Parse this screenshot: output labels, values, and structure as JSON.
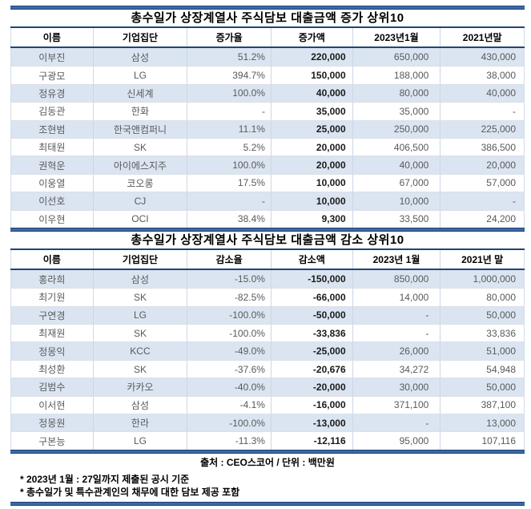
{
  "colors": {
    "rule_navy_core": "#3b69a5",
    "rule_navy_edge": "#1d4273",
    "divider_navy": "#1f4577",
    "row_alt_fill": "#dbe5f1",
    "grid_line": "#ccd7e6",
    "data_text": "#58595b"
  },
  "chart_data": [
    {
      "type": "table",
      "title": "총수일가 상장계열사 주식담보 대출금액 증가 상위10",
      "headers": [
        "이름",
        "기업집단",
        "증가율",
        "증가액",
        "2023년1월",
        "2021년말"
      ],
      "rows": [
        [
          "이부진",
          "삼성",
          "51.2%",
          "220,000",
          "650,000",
          "430,000"
        ],
        [
          "구광모",
          "LG",
          "394.7%",
          "150,000",
          "188,000",
          "38,000"
        ],
        [
          "정유경",
          "신세계",
          "100.0%",
          "40,000",
          "80,000",
          "40,000"
        ],
        [
          "김동관",
          "한화",
          "-",
          "35,000",
          "35,000",
          "-"
        ],
        [
          "조현범",
          "한국앤컴퍼니",
          "11.1%",
          "25,000",
          "250,000",
          "225,000"
        ],
        [
          "최태원",
          "SK",
          "5.2%",
          "20,000",
          "406,500",
          "386,500"
        ],
        [
          "권혁운",
          "아이에스지주",
          "100.0%",
          "20,000",
          "40,000",
          "20,000"
        ],
        [
          "이웅열",
          "코오롱",
          "17.5%",
          "10,000",
          "67,000",
          "57,000"
        ],
        [
          "이선호",
          "CJ",
          "-",
          "10,000",
          "10,000",
          "-"
        ],
        [
          "이우현",
          "OCI",
          "38.4%",
          "9,300",
          "33,500",
          "24,200"
        ]
      ]
    },
    {
      "type": "table",
      "title": "총수일가 상장계열사 주식담보 대출금액 감소 상위10",
      "headers": [
        "이름",
        "기업집단",
        "감소율",
        "감소액",
        "2023년 1월",
        "2021년 말"
      ],
      "rows": [
        [
          "홍라희",
          "삼성",
          "-15.0%",
          "-150,000",
          "850,000",
          "1,000,000"
        ],
        [
          "최기원",
          "SK",
          "-82.5%",
          "-66,000",
          "14,000",
          "80,000"
        ],
        [
          "구연경",
          "LG",
          "-100.0%",
          "-50,000",
          "-",
          "50,000"
        ],
        [
          "최재원",
          "SK",
          "-100.0%",
          "-33,836",
          "-",
          "33,836"
        ],
        [
          "정몽익",
          "KCC",
          "-49.0%",
          "-25,000",
          "26,000",
          "51,000"
        ],
        [
          "최성환",
          "SK",
          "-37.6%",
          "-20,676",
          "34,272",
          "54,948"
        ],
        [
          "김범수",
          "카카오",
          "-40.0%",
          "-20,000",
          "30,000",
          "50,000"
        ],
        [
          "이서현",
          "삼성",
          "-4.1%",
          "-16,000",
          "371,100",
          "387,100"
        ],
        [
          "정몽원",
          "한라",
          "-100.0%",
          "-13,000",
          "-",
          "13,000"
        ],
        [
          "구본능",
          "LG",
          "-11.3%",
          "-12,116",
          "95,000",
          "107,116"
        ]
      ]
    }
  ],
  "footer": {
    "source": "출처 : CEO스코어 / 단위 : 백만원",
    "footnotes": [
      "* 2023년 1월 : 27일까지 제출된 공시 기준",
      "* 총수일가 및 특수관계인의 채무에 대한 담보 제공 포함"
    ]
  }
}
